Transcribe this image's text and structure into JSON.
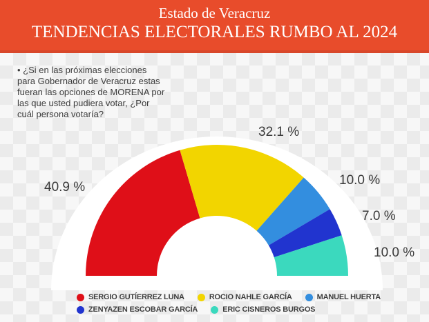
{
  "header": {
    "line1": "Estado de Veracruz",
    "line2": "TENDENCIAS ELECTORALES RUMBO AL 2024",
    "background_color": "#e84c2b",
    "text_color": "#ffffff"
  },
  "question": {
    "lines": [
      "• ¿Si en las próximas elecciones",
      "para Gobernador de Veracruz estas",
      "fueran las opciones de MORENA por",
      "las que usted pudiera votar, ¿Por",
      "cuál persona  votaría?"
    ]
  },
  "chart_data": {
    "type": "pie",
    "variant": "half-donut-gauge",
    "title": "",
    "unit": "%",
    "total": 100,
    "start_angle_deg": 180,
    "end_angle_deg": 0,
    "legend_position": "bottom",
    "background_shape_color": "#ffffff",
    "series": [
      {
        "name": "SERGIO GUTÍERREZ LUNA",
        "value": 40.9,
        "label": "40.9 %",
        "color": "#df0f18"
      },
      {
        "name": "ROCIO NAHLE GARCÍA",
        "value": 32.1,
        "label": "32.1 %",
        "color": "#f2d500"
      },
      {
        "name": "MANUEL HUERTA",
        "value": 10.0,
        "label": "10.0 %",
        "color": "#338edf"
      },
      {
        "name": "ZENYAZEN ESCOBAR GARCÍA",
        "value": 7.0,
        "label": "7.0 %",
        "color": "#2134cf"
      },
      {
        "name": "ERIC CISNEROS BURGOS",
        "value": 10.0,
        "label": "10.0 %",
        "color": "#3bd9be"
      }
    ]
  }
}
